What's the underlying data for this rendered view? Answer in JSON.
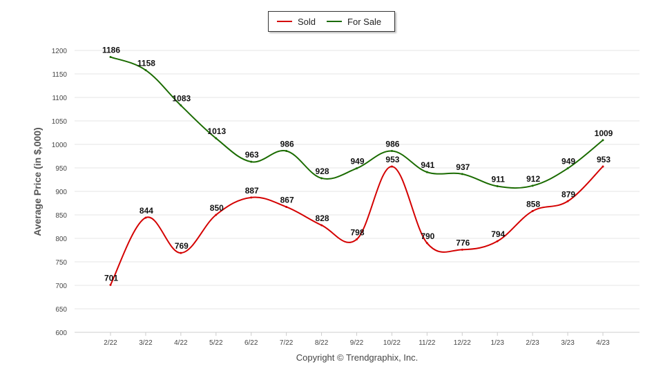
{
  "legend": {
    "sold_label": "Sold",
    "for_sale_label": "For Sale"
  },
  "copyright": "Copyright © Trendgraphix, Inc.",
  "chart_data": {
    "type": "line",
    "title": "",
    "xlabel": "",
    "ylabel": "Average Price (in $,000)",
    "categories": [
      "2/22",
      "3/22",
      "4/22",
      "5/22",
      "6/22",
      "7/22",
      "8/22",
      "9/22",
      "10/22",
      "11/22",
      "12/22",
      "1/23",
      "2/23",
      "3/23",
      "4/23"
    ],
    "ylim": [
      600,
      1200
    ],
    "yticks": [
      600,
      650,
      700,
      750,
      800,
      850,
      900,
      950,
      1000,
      1050,
      1100,
      1150,
      1200
    ],
    "grid": true,
    "legend_position": "top-center",
    "series": [
      {
        "name": "Sold",
        "color": "#d40000",
        "values": [
          701,
          844,
          769,
          850,
          887,
          867,
          828,
          798,
          953,
          790,
          776,
          794,
          858,
          879,
          953
        ]
      },
      {
        "name": "For Sale",
        "color": "#1a6b00",
        "values": [
          1186,
          1158,
          1083,
          1013,
          963,
          986,
          928,
          949,
          986,
          941,
          937,
          911,
          912,
          949,
          1009
        ]
      }
    ]
  }
}
